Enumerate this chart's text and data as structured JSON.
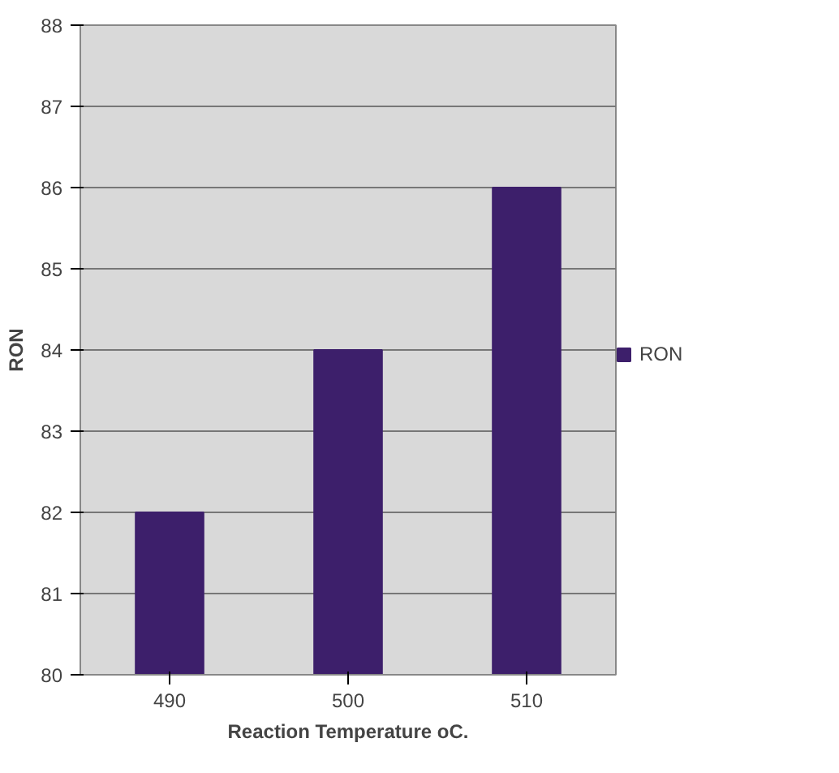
{
  "chart_data": {
    "type": "bar",
    "xlabel": "Reaction Temperature oC.",
    "ylabel": "RON",
    "categories": [
      "490",
      "500",
      "510"
    ],
    "series": [
      {
        "name": "RON",
        "color": "#3d1f6b",
        "values": [
          82,
          84,
          86
        ]
      }
    ],
    "ylim": [
      80,
      88
    ],
    "yticks": [
      80,
      81,
      82,
      83,
      84,
      85,
      86,
      87,
      88
    ],
    "grid": "y",
    "legend": "right"
  }
}
